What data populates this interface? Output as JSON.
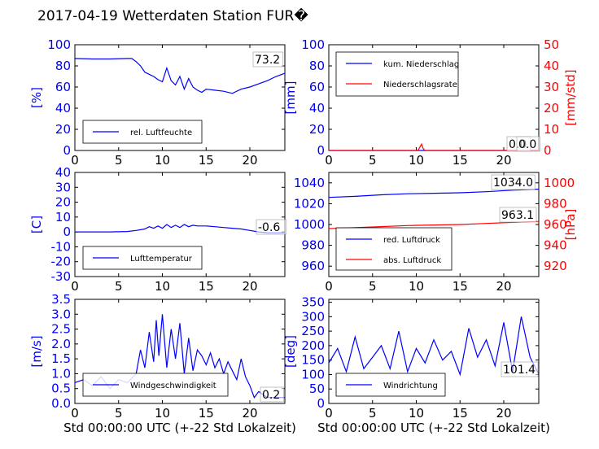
{
  "figure": {
    "title": "2017-04-19 Wetterdaten Station FUR�",
    "xlabel": "Std 00:00:00 UTC (+-22 Std Lokalzeit)"
  },
  "colors": {
    "primary": "#0000ff",
    "secondary": "#ff0000",
    "axis": "#000000"
  },
  "chart_data": [
    {
      "id": "humidity",
      "type": "line",
      "xlim": [
        0,
        24
      ],
      "ylim": [
        0,
        100
      ],
      "xticks": [
        0,
        5,
        10,
        15,
        20
      ],
      "yticks": [
        0,
        20,
        40,
        60,
        80,
        100
      ],
      "ylabel": "[%]",
      "legend": [
        "rel. Luftfeuchte"
      ],
      "legend_placement": "lower-left",
      "annotations": [
        "73.2"
      ],
      "series": [
        {
          "name": "rel. Luftfeuchte",
          "color": "#0000ff",
          "x": [
            0,
            2,
            4,
            6,
            6.5,
            7,
            7.5,
            8,
            8.5,
            9,
            9.5,
            10,
            10.5,
            11,
            11.5,
            12,
            12.5,
            13,
            13.5,
            14,
            14.5,
            15,
            16,
            17,
            18,
            19,
            20,
            21,
            22,
            23,
            24
          ],
          "y": [
            87,
            86.5,
            86.5,
            87,
            87,
            84,
            80,
            74,
            72,
            70,
            67,
            65,
            78,
            66,
            62,
            70,
            58,
            68,
            60,
            57,
            55,
            58,
            57,
            56,
            54,
            58,
            60,
            63,
            66,
            70,
            73
          ]
        }
      ]
    },
    {
      "id": "precip",
      "type": "line",
      "xlim": [
        0,
        24
      ],
      "ylim": [
        0,
        100
      ],
      "xticks": [
        0,
        5,
        10,
        15,
        20
      ],
      "yticks": [
        0,
        20,
        40,
        60,
        80,
        100
      ],
      "ylabel": "[mm]",
      "ylim2": [
        0,
        50
      ],
      "yticks2": [
        0,
        10,
        20,
        30,
        40,
        50
      ],
      "ylabel2": "[mm/std]",
      "legend": [
        "kum. Niederschlag",
        "Niederschlagsrate"
      ],
      "legend_placement": "upper-left",
      "annotations": [
        "0.0",
        "0.0"
      ],
      "series": [
        {
          "name": "kum. Niederschlag",
          "color": "#0000ff",
          "axis": "left",
          "x": [
            0,
            24
          ],
          "y": [
            0,
            0
          ]
        },
        {
          "name": "Niederschlagsrate",
          "color": "#ff0000",
          "axis": "right",
          "x": [
            0,
            9,
            10.2,
            10.4,
            10.6,
            10.8,
            11,
            14,
            20,
            24
          ],
          "y": [
            0,
            0,
            0,
            1.5,
            3,
            0.8,
            0,
            0,
            0,
            0
          ]
        }
      ]
    },
    {
      "id": "temperature",
      "type": "line",
      "xlim": [
        0,
        24
      ],
      "ylim": [
        -30,
        40
      ],
      "xticks": [
        0,
        5,
        10,
        15,
        20
      ],
      "yticks": [
        -30,
        -20,
        -10,
        0,
        10,
        20,
        30,
        40
      ],
      "ylabel": "[C]",
      "legend": [
        "Lufttemperatur"
      ],
      "legend_placement": "lower-left",
      "annotations": [
        "-0.6"
      ],
      "series": [
        {
          "name": "Lufttemperatur",
          "color": "#0000ff",
          "x": [
            0,
            2,
            4,
            6,
            7,
            8,
            8.5,
            9,
            9.5,
            10,
            10.5,
            11,
            11.5,
            12,
            12.5,
            13,
            13.5,
            14,
            15,
            16,
            17,
            18,
            19,
            20,
            21,
            22,
            23,
            24
          ],
          "y": [
            0,
            0,
            0,
            0.3,
            1,
            2,
            3.5,
            2.5,
            4,
            2.5,
            5,
            3,
            4.5,
            3,
            5,
            3.5,
            4.5,
            4,
            4,
            3.5,
            3,
            2.5,
            2,
            1,
            0,
            -0.5,
            -0.6,
            -0.6
          ]
        }
      ]
    },
    {
      "id": "pressure",
      "type": "line",
      "xlim": [
        0,
        24
      ],
      "ylim": [
        950,
        1050
      ],
      "xticks": [
        0,
        5,
        10,
        15,
        20
      ],
      "yticks": [
        960,
        980,
        1000,
        1020,
        1040
      ],
      "ylabel": "",
      "ylim2": [
        910,
        1010
      ],
      "yticks2": [
        920,
        940,
        960,
        980,
        1000
      ],
      "ylabel2": "[hPa]",
      "legend": [
        "red. Luftdruck",
        "abs. Luftdruck"
      ],
      "legend_placement": "lower-left",
      "annotations": [
        "1034.0",
        "963.1"
      ],
      "series": [
        {
          "name": "red. Luftdruck",
          "color": "#0000ff",
          "axis": "left",
          "x": [
            0,
            3,
            6,
            9,
            12,
            15,
            18,
            21,
            24
          ],
          "y": [
            1026,
            1027,
            1028.5,
            1029.5,
            1030,
            1030.5,
            1031.5,
            1033,
            1034
          ]
        },
        {
          "name": "abs. Luftdruck",
          "color": "#ff0000",
          "axis": "right",
          "x": [
            0,
            3,
            6,
            9,
            12,
            15,
            18,
            21,
            24
          ],
          "y": [
            956,
            957,
            958,
            959,
            959.5,
            960,
            961,
            962,
            963
          ]
        }
      ]
    },
    {
      "id": "wind_speed",
      "type": "line",
      "xlim": [
        0,
        24
      ],
      "ylim": [
        0,
        3.5
      ],
      "xticks": [
        0,
        5,
        10,
        15,
        20
      ],
      "yticks": [
        0.0,
        0.5,
        1.0,
        1.5,
        2.0,
        2.5,
        3.0,
        3.5
      ],
      "ylabel": "[m/s]",
      "legend": [
        "Windgeschwindigkeit"
      ],
      "legend_placement": "lower-left",
      "annotations": [
        "0.2"
      ],
      "series": [
        {
          "name": "Windgeschwindigkeit",
          "color": "#0000ff",
          "x": [
            0,
            1,
            2,
            3,
            4,
            5,
            6,
            7,
            7.5,
            8,
            8.5,
            9,
            9.3,
            9.6,
            10,
            10.5,
            11,
            11.5,
            12,
            12.5,
            13,
            13.5,
            14,
            14.5,
            15,
            15.5,
            16,
            16.5,
            17,
            17.5,
            18,
            18.5,
            19,
            19.5,
            20,
            20.5,
            21,
            22,
            23,
            24
          ],
          "y": [
            0.7,
            0.8,
            0.6,
            0.9,
            0.5,
            0.8,
            0.7,
            1.0,
            1.8,
            1.2,
            2.4,
            1.4,
            2.8,
            1.6,
            3.0,
            1.2,
            2.5,
            1.5,
            2.7,
            1.0,
            2.2,
            1.1,
            1.8,
            1.6,
            1.3,
            1.7,
            1.2,
            1.5,
            1.0,
            1.4,
            1.1,
            0.8,
            1.5,
            0.9,
            0.6,
            0.2,
            0.4,
            0.2,
            0.2,
            0.2
          ]
        }
      ]
    },
    {
      "id": "wind_dir",
      "type": "line",
      "xlim": [
        0,
        24
      ],
      "ylim": [
        0,
        360
      ],
      "xticks": [
        0,
        5,
        10,
        15,
        20
      ],
      "yticks": [
        0,
        50,
        100,
        150,
        200,
        250,
        300,
        350
      ],
      "ylabel": "[deg]",
      "legend": [
        "Windrichtung"
      ],
      "legend_placement": "lower-left",
      "annotations": [
        "101.4"
      ],
      "series": [
        {
          "name": "Windrichtung",
          "color": "#0000ff",
          "x": [
            0,
            1,
            2,
            3,
            4,
            5,
            6,
            7,
            8,
            9,
            10,
            11,
            12,
            13,
            14,
            15,
            16,
            17,
            18,
            19,
            20,
            21,
            22,
            23,
            24
          ],
          "y": [
            140,
            190,
            110,
            230,
            120,
            160,
            200,
            120,
            250,
            110,
            190,
            140,
            220,
            150,
            180,
            100,
            260,
            160,
            220,
            130,
            280,
            110,
            300,
            160,
            100
          ]
        }
      ]
    }
  ]
}
